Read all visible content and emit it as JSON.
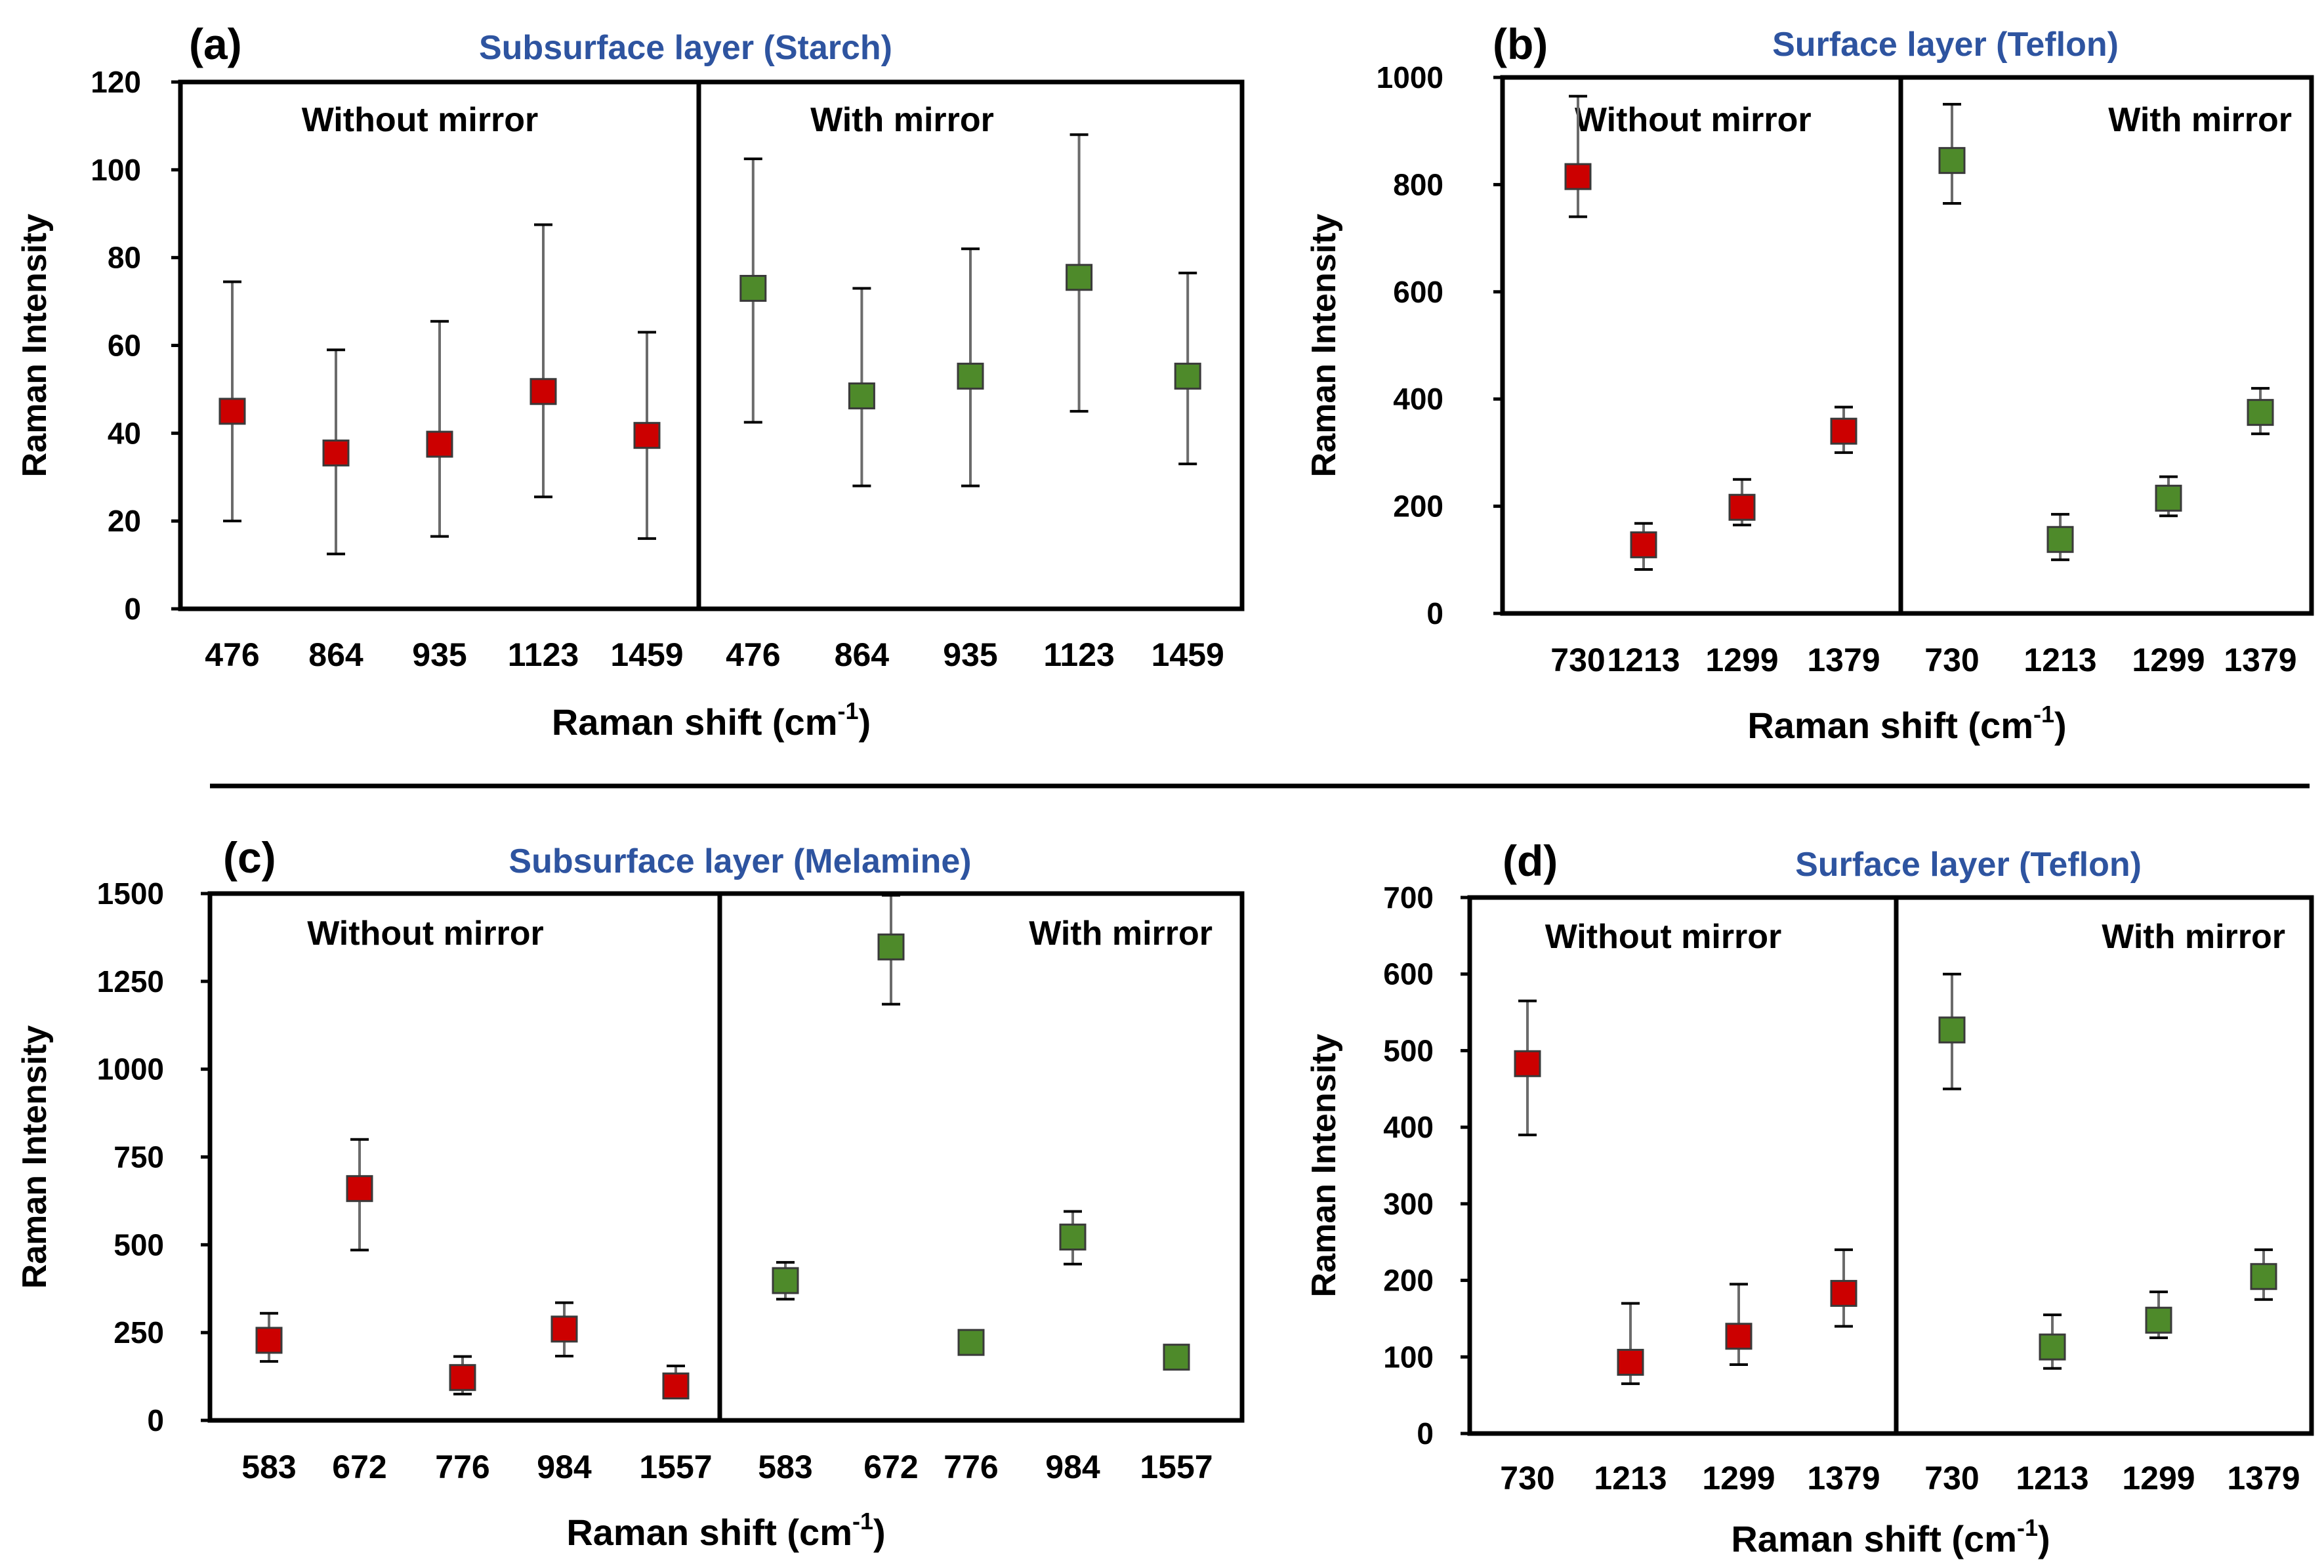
{
  "chart_data": [
    {
      "type": "scatter",
      "panel_label": "(a)",
      "title": "Subsurface layer (Starch)",
      "xlabel": "Raman shift (cm",
      "xlabel_sup": "-1",
      "xlabel_end": ")",
      "ylabel": "Raman Intensity",
      "ylim": [
        0,
        120
      ],
      "yticks": [
        "0",
        "20",
        "40",
        "60",
        "80",
        "100",
        "120"
      ],
      "groups": [
        {
          "name": "Without mirror",
          "color": "#cc0000",
          "categories": [
            "476",
            "864",
            "935",
            "1123",
            "1459"
          ],
          "values": [
            45,
            35.5,
            37.5,
            49.5,
            39.5
          ],
          "error_low": [
            20,
            12.5,
            16.5,
            25.5,
            16
          ],
          "error_high": [
            74.5,
            59,
            65.5,
            87.5,
            63
          ]
        },
        {
          "name": "With mirror",
          "color": "#4e8a2a",
          "categories": [
            "476",
            "864",
            "935",
            "1123",
            "1459"
          ],
          "values": [
            73,
            48.5,
            53,
            75.5,
            53
          ],
          "error_low": [
            42.5,
            28,
            28,
            45,
            33
          ],
          "error_high": [
            102.5,
            73,
            82,
            108,
            76.5
          ]
        }
      ]
    },
    {
      "type": "scatter",
      "panel_label": "(b)",
      "title": "Surface layer (Teflon)",
      "xlabel": "Raman shift (cm",
      "xlabel_sup": "-1",
      "xlabel_end": ")",
      "ylabel": "Raman Intensity",
      "ylim": [
        0,
        1000
      ],
      "yticks": [
        "0",
        "200",
        "400",
        "600",
        "800",
        "1000"
      ],
      "groups": [
        {
          "name": "Without mirror",
          "color": "#cc0000",
          "categories": [
            "730",
            "1213",
            "1299",
            "1379"
          ],
          "values": [
            815,
            128,
            198,
            340
          ],
          "error_low": [
            740,
            82,
            165,
            300
          ],
          "error_high": [
            965,
            168,
            250,
            385
          ]
        },
        {
          "name": "With mirror",
          "color": "#4e8a2a",
          "categories": [
            "730",
            "1213",
            "1299",
            "1379"
          ],
          "values": [
            845,
            138,
            215,
            375
          ],
          "error_low": [
            765,
            100,
            182,
            335
          ],
          "error_high": [
            950,
            185,
            255,
            420
          ]
        }
      ]
    },
    {
      "type": "scatter",
      "panel_label": "(c)",
      "title": "Subsurface layer (Melamine)",
      "xlabel": "Raman shift (cm",
      "xlabel_sup": "-1",
      "xlabel_end": ")",
      "ylabel": "Raman Intensity",
      "ylim": [
        0,
        1500
      ],
      "yticks": [
        "0",
        "250",
        "500",
        "750",
        "1000",
        "1250",
        "1500"
      ],
      "groups": [
        {
          "name": "Without mirror",
          "color": "#cc0000",
          "categories": [
            "583",
            "672",
            "776",
            "984",
            "1557"
          ],
          "values": [
            228,
            660,
            122,
            260,
            98
          ],
          "error_low": [
            168,
            485,
            75,
            183,
            65
          ],
          "error_high": [
            305,
            800,
            182,
            335,
            155
          ]
        },
        {
          "name": "With mirror",
          "color": "#4e8a2a",
          "categories": [
            "583",
            "672",
            "776",
            "984",
            "1557"
          ],
          "values": [
            398,
            1348,
            222,
            522,
            180
          ],
          "error_low": [
            345,
            1185,
            195,
            445,
            160
          ],
          "error_high": [
            450,
            1495,
            250,
            595,
            200
          ]
        }
      ]
    },
    {
      "type": "scatter",
      "panel_label": "(d)",
      "title": "Surface layer (Teflon)",
      "xlabel": "Raman shift (cm",
      "xlabel_sup": "-1",
      "xlabel_end": ")",
      "ylabel": "Raman Intensity",
      "ylim": [
        0,
        700
      ],
      "yticks": [
        "0",
        "100",
        "200",
        "300",
        "400",
        "500",
        "600",
        "700"
      ],
      "groups": [
        {
          "name": "Without mirror",
          "color": "#cc0000",
          "categories": [
            "730",
            "1213",
            "1299",
            "1379"
          ],
          "values": [
            483,
            93,
            127,
            183
          ],
          "error_low": [
            390,
            65,
            90,
            140
          ],
          "error_high": [
            565,
            170,
            195,
            240
          ]
        },
        {
          "name": "With mirror",
          "color": "#4e8a2a",
          "categories": [
            "730",
            "1213",
            "1299",
            "1379"
          ],
          "values": [
            527,
            113,
            148,
            205
          ],
          "error_low": [
            450,
            85,
            125,
            175
          ],
          "error_high": [
            600,
            155,
            185,
            240
          ]
        }
      ]
    }
  ],
  "colors": {
    "title": "#2e54a0",
    "axis": "#000000",
    "errorbar": "#6b6b6b",
    "marker_edge": "#3a3a3a"
  }
}
